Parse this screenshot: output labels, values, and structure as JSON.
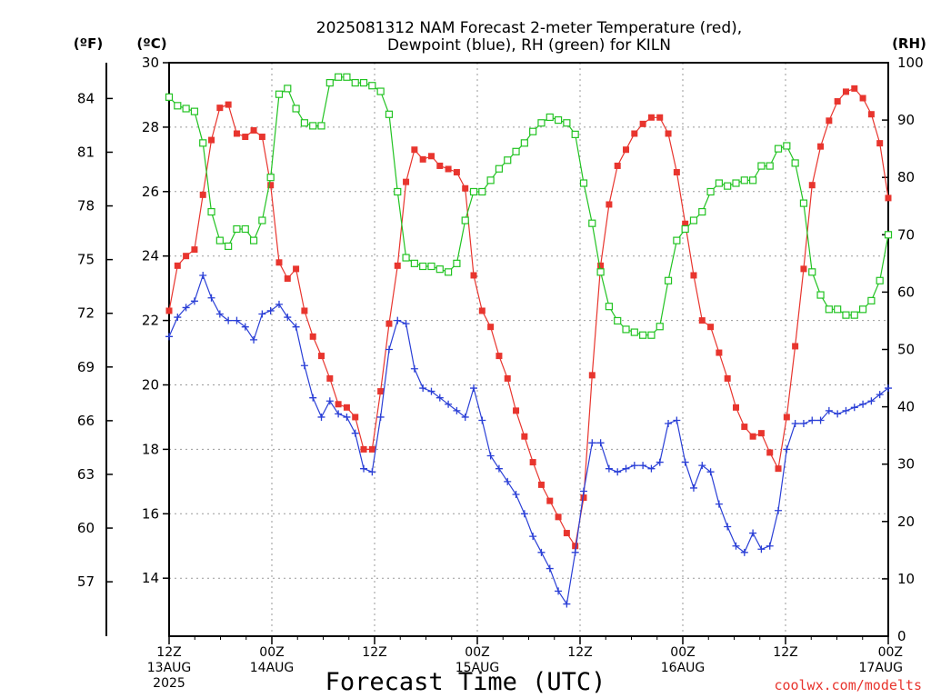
{
  "chart_data": {
    "type": "line",
    "title_line1": "2025081312 NAM Forecast 2-meter Temperature (red),",
    "title_line2": "Dewpoint (blue), RH (green) for KILN",
    "xlabel": "Forecast Time (UTC)",
    "credit": "coolwx.com/modelts",
    "unit_labels": {
      "fahrenheit": "(ºF)",
      "celsius": "(ºC)",
      "rh": "(RH)"
    },
    "x_range_hours": [
      0,
      84
    ],
    "x_ticks": [
      {
        "hour": 0,
        "line1": "12Z",
        "line2": "13AUG",
        "line3": "2025"
      },
      {
        "hour": 12,
        "line1": "00Z",
        "line2": "14AUG",
        "line3": ""
      },
      {
        "hour": 24,
        "line1": "12Z",
        "line2": "",
        "line3": ""
      },
      {
        "hour": 36,
        "line1": "00Z",
        "line2": "15AUG",
        "line3": ""
      },
      {
        "hour": 48,
        "line1": "12Z",
        "line2": "",
        "line3": ""
      },
      {
        "hour": 60,
        "line1": "00Z",
        "line2": "16AUG",
        "line3": ""
      },
      {
        "hour": 72,
        "line1": "12Z",
        "line2": "",
        "line3": ""
      },
      {
        "hour": 84,
        "line1": "00Z",
        "line2": "17AUG",
        "line3": ""
      }
    ],
    "celsius_axis": {
      "range": [
        12.2,
        30.0
      ],
      "ticks": [
        14,
        16,
        18,
        20,
        22,
        24,
        26,
        28,
        30
      ]
    },
    "fahrenheit_ticks": [
      57,
      60,
      63,
      66,
      69,
      72,
      75,
      78,
      81,
      84
    ],
    "rh_axis": {
      "range": [
        0,
        100
      ],
      "ticks": [
        0,
        10,
        20,
        30,
        40,
        50,
        60,
        70,
        80,
        90,
        100
      ]
    },
    "grid": true,
    "series": [
      {
        "name": "2-meter Temperature",
        "color": "#e8352e",
        "marker": "filled-square",
        "axis": "celsius",
        "values": [
          22.3,
          23.7,
          24.0,
          24.2,
          25.9,
          27.6,
          28.6,
          28.7,
          27.8,
          27.7,
          27.9,
          27.7,
          26.2,
          23.8,
          23.3,
          23.6,
          22.3,
          21.5,
          20.9,
          20.2,
          19.4,
          19.3,
          19.0,
          18.0,
          18.0,
          19.8,
          21.9,
          23.7,
          26.3,
          27.3,
          27.0,
          27.1,
          26.8,
          26.7,
          26.6,
          26.1,
          23.4,
          22.3,
          21.8,
          20.9,
          20.2,
          19.2,
          18.4,
          17.6,
          16.9,
          16.4,
          15.9,
          15.4,
          15.0,
          16.5,
          20.3,
          23.7,
          25.6,
          26.8,
          27.3,
          27.8,
          28.1,
          28.3,
          28.3,
          27.8,
          26.6,
          25.0,
          23.4,
          22.0,
          21.8,
          21.0,
          20.2,
          19.3,
          18.7,
          18.4,
          18.5,
          17.9,
          17.4,
          19.0,
          21.2,
          23.6,
          26.2,
          27.4,
          28.2,
          28.8,
          29.1,
          29.2,
          28.9,
          28.4,
          27.5,
          25.8
        ]
      },
      {
        "name": "Dewpoint",
        "color": "#2a3fd6",
        "marker": "plus",
        "axis": "celsius",
        "values": [
          21.5,
          22.1,
          22.4,
          22.6,
          23.4,
          22.7,
          22.2,
          22.0,
          22.0,
          21.8,
          21.4,
          22.2,
          22.3,
          22.5,
          22.1,
          21.8,
          20.6,
          19.6,
          19.0,
          19.5,
          19.1,
          19.0,
          18.5,
          17.4,
          17.3,
          19.0,
          21.1,
          22.0,
          21.9,
          20.5,
          19.9,
          19.8,
          19.6,
          19.4,
          19.2,
          19.0,
          19.9,
          18.9,
          17.8,
          17.4,
          17.0,
          16.6,
          16.0,
          15.3,
          14.8,
          14.3,
          13.6,
          13.2,
          14.8,
          16.7,
          18.2,
          18.2,
          17.4,
          17.3,
          17.4,
          17.5,
          17.5,
          17.4,
          17.6,
          18.8,
          18.9,
          17.6,
          16.8,
          17.5,
          17.3,
          16.3,
          15.6,
          15.0,
          14.8,
          15.4,
          14.9,
          15.0,
          16.1,
          18.0,
          18.8,
          18.8,
          18.9,
          18.9,
          19.2,
          19.1,
          19.2,
          19.3,
          19.4,
          19.5,
          19.7,
          19.9
        ]
      },
      {
        "name": "RH",
        "color": "#22c322",
        "marker": "open-square",
        "axis": "rh",
        "values": [
          94,
          92.5,
          92,
          91.5,
          86,
          74,
          69,
          68,
          71,
          71,
          69,
          72.5,
          80,
          94.5,
          95.5,
          92,
          89.5,
          89,
          89,
          96.5,
          97.5,
          97.5,
          96.5,
          96.5,
          96,
          95,
          91,
          77.5,
          66,
          65,
          64.5,
          64.5,
          64,
          63.5,
          65,
          72.5,
          77.5,
          77.5,
          79.5,
          81.5,
          83,
          84.5,
          86,
          88,
          89.5,
          90.5,
          90,
          89.5,
          87.5,
          79,
          72,
          63.5,
          57.5,
          55,
          53.5,
          53,
          52.5,
          52.5,
          54,
          62,
          69,
          71,
          72.5,
          74,
          77.5,
          79,
          78.5,
          79,
          79.5,
          79.5,
          82,
          82,
          85,
          85.5,
          82.5,
          75.5,
          63.5,
          59.5,
          57,
          57,
          56,
          56,
          57,
          58.5,
          62,
          70
        ]
      }
    ]
  }
}
